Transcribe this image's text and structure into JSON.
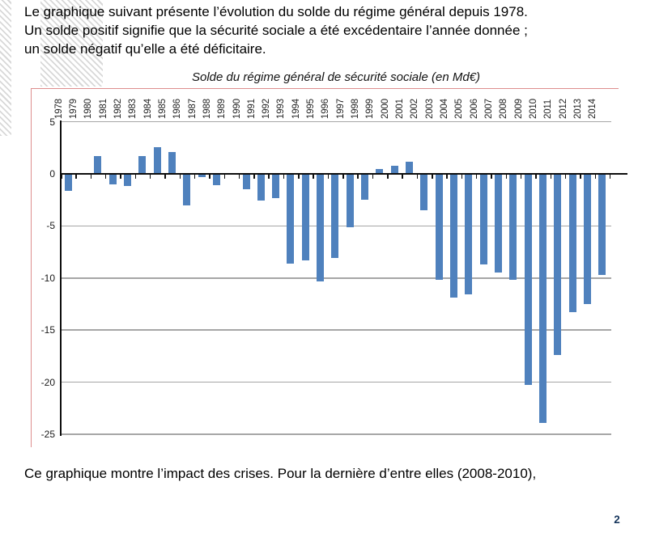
{
  "intro": {
    "lines": [
      "Le graphique suivant présente l’évolution du solde du régime général depuis 1978.",
      "Un solde positif signifie que la sécurité sociale a été excédentaire l’année donnée ;",
      "un solde négatif qu’elle a été déficitaire."
    ]
  },
  "chart_data": {
    "type": "bar",
    "title": "Solde du régime général de sécurité sociale (en Md€)",
    "categories": [
      "1978",
      "1979",
      "1980",
      "1981",
      "1982",
      "1983",
      "1984",
      "1985",
      "1986",
      "1987",
      "1988",
      "1989",
      "1990",
      "1991",
      "1992",
      "1993",
      "1994",
      "1995",
      "1996",
      "1997",
      "1998",
      "1999",
      "2000",
      "2001",
      "2002",
      "2003",
      "2004",
      "2005",
      "2006",
      "2007",
      "2008",
      "2009",
      "2010",
      "2011",
      "2012",
      "2013",
      "2014"
    ],
    "values": [
      -1.6,
      0,
      1.7,
      -1.0,
      -1.2,
      1.7,
      2.6,
      2.1,
      -3.0,
      -0.3,
      -1.1,
      0,
      -1.5,
      -2.6,
      -2.3,
      -8.6,
      -8.3,
      -10.3,
      -8.1,
      -5.1,
      -2.5,
      0.5,
      0.8,
      1.2,
      -3.5,
      -10.2,
      -11.9,
      -11.6,
      -8.7,
      -9.5,
      -10.2,
      -20.3,
      -23.9,
      -17.4,
      -13.3,
      -12.5,
      -9.7
    ],
    "xlabel": "",
    "ylabel": "",
    "ylim": [
      -25,
      5
    ],
    "yticks": [
      5,
      0,
      -5,
      -10,
      -15,
      -20,
      -25
    ],
    "grid": true,
    "legend": "none",
    "bar_color": "#4F81BD",
    "gridline_color": "#A6A6A6",
    "axis_color": "#0D0D0D",
    "frame_color": "#DD8E8E"
  },
  "footer": {
    "text": "Ce graphique montre l’impact des crises. Pour la dernière d’entre elles (2008-2010),",
    "page_number": "2"
  }
}
